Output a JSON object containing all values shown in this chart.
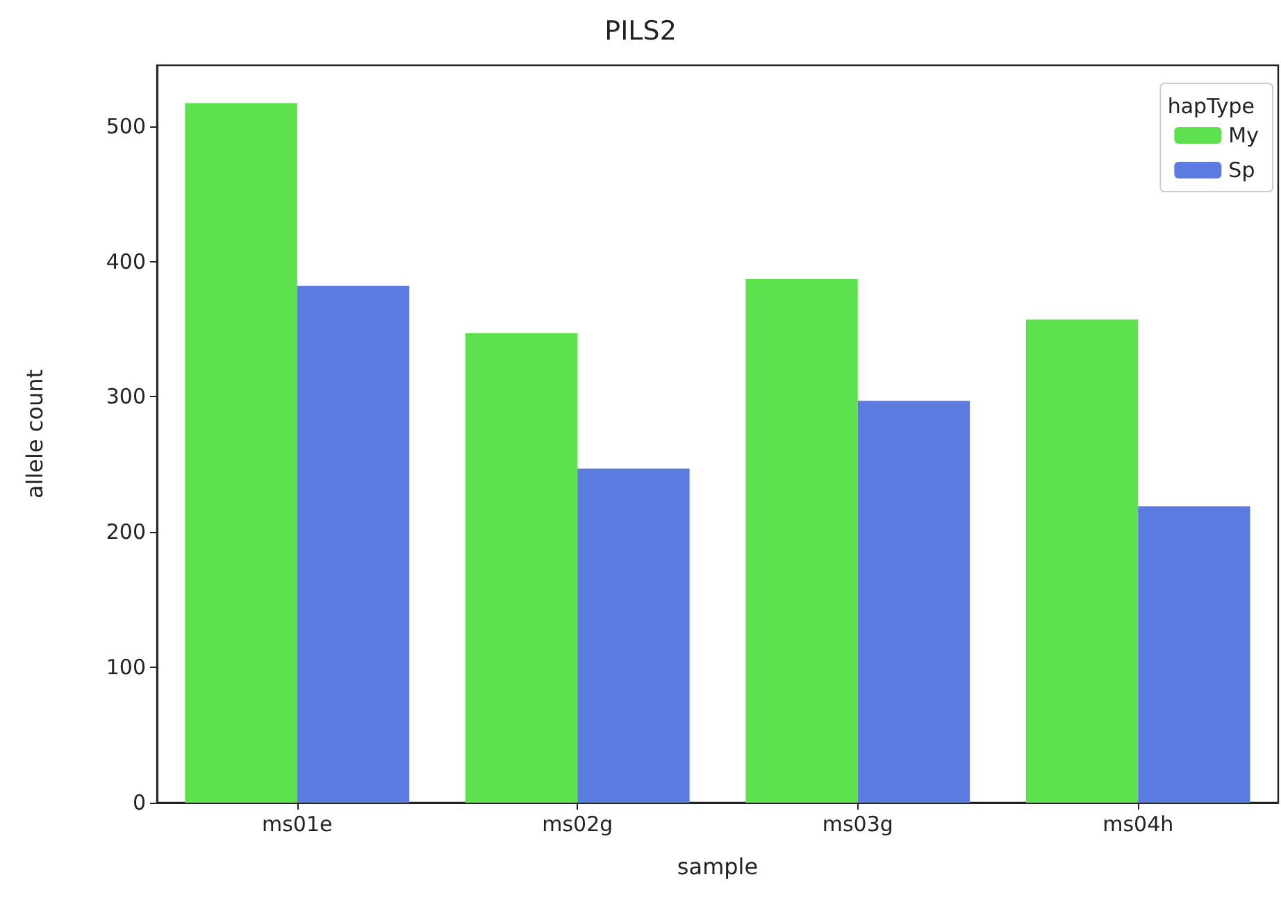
{
  "chart_data": {
    "type": "bar",
    "title": "PILS2",
    "xlabel": "sample",
    "ylabel": "allele count",
    "legend_title": "hapType",
    "categories": [
      "ms01e",
      "ms02g",
      "ms03g",
      "ms04h"
    ],
    "series": [
      {
        "name": "My",
        "color": "#5ee14f",
        "values": [
          517,
          347,
          387,
          357
        ]
      },
      {
        "name": "Sp",
        "color": "#5c7be0",
        "values": [
          382,
          247,
          297,
          219
        ]
      }
    ],
    "ylim": [
      0,
      545
    ],
    "yticks": [
      0,
      100,
      200,
      300,
      400,
      500
    ],
    "grid": false,
    "legend": "top right"
  }
}
